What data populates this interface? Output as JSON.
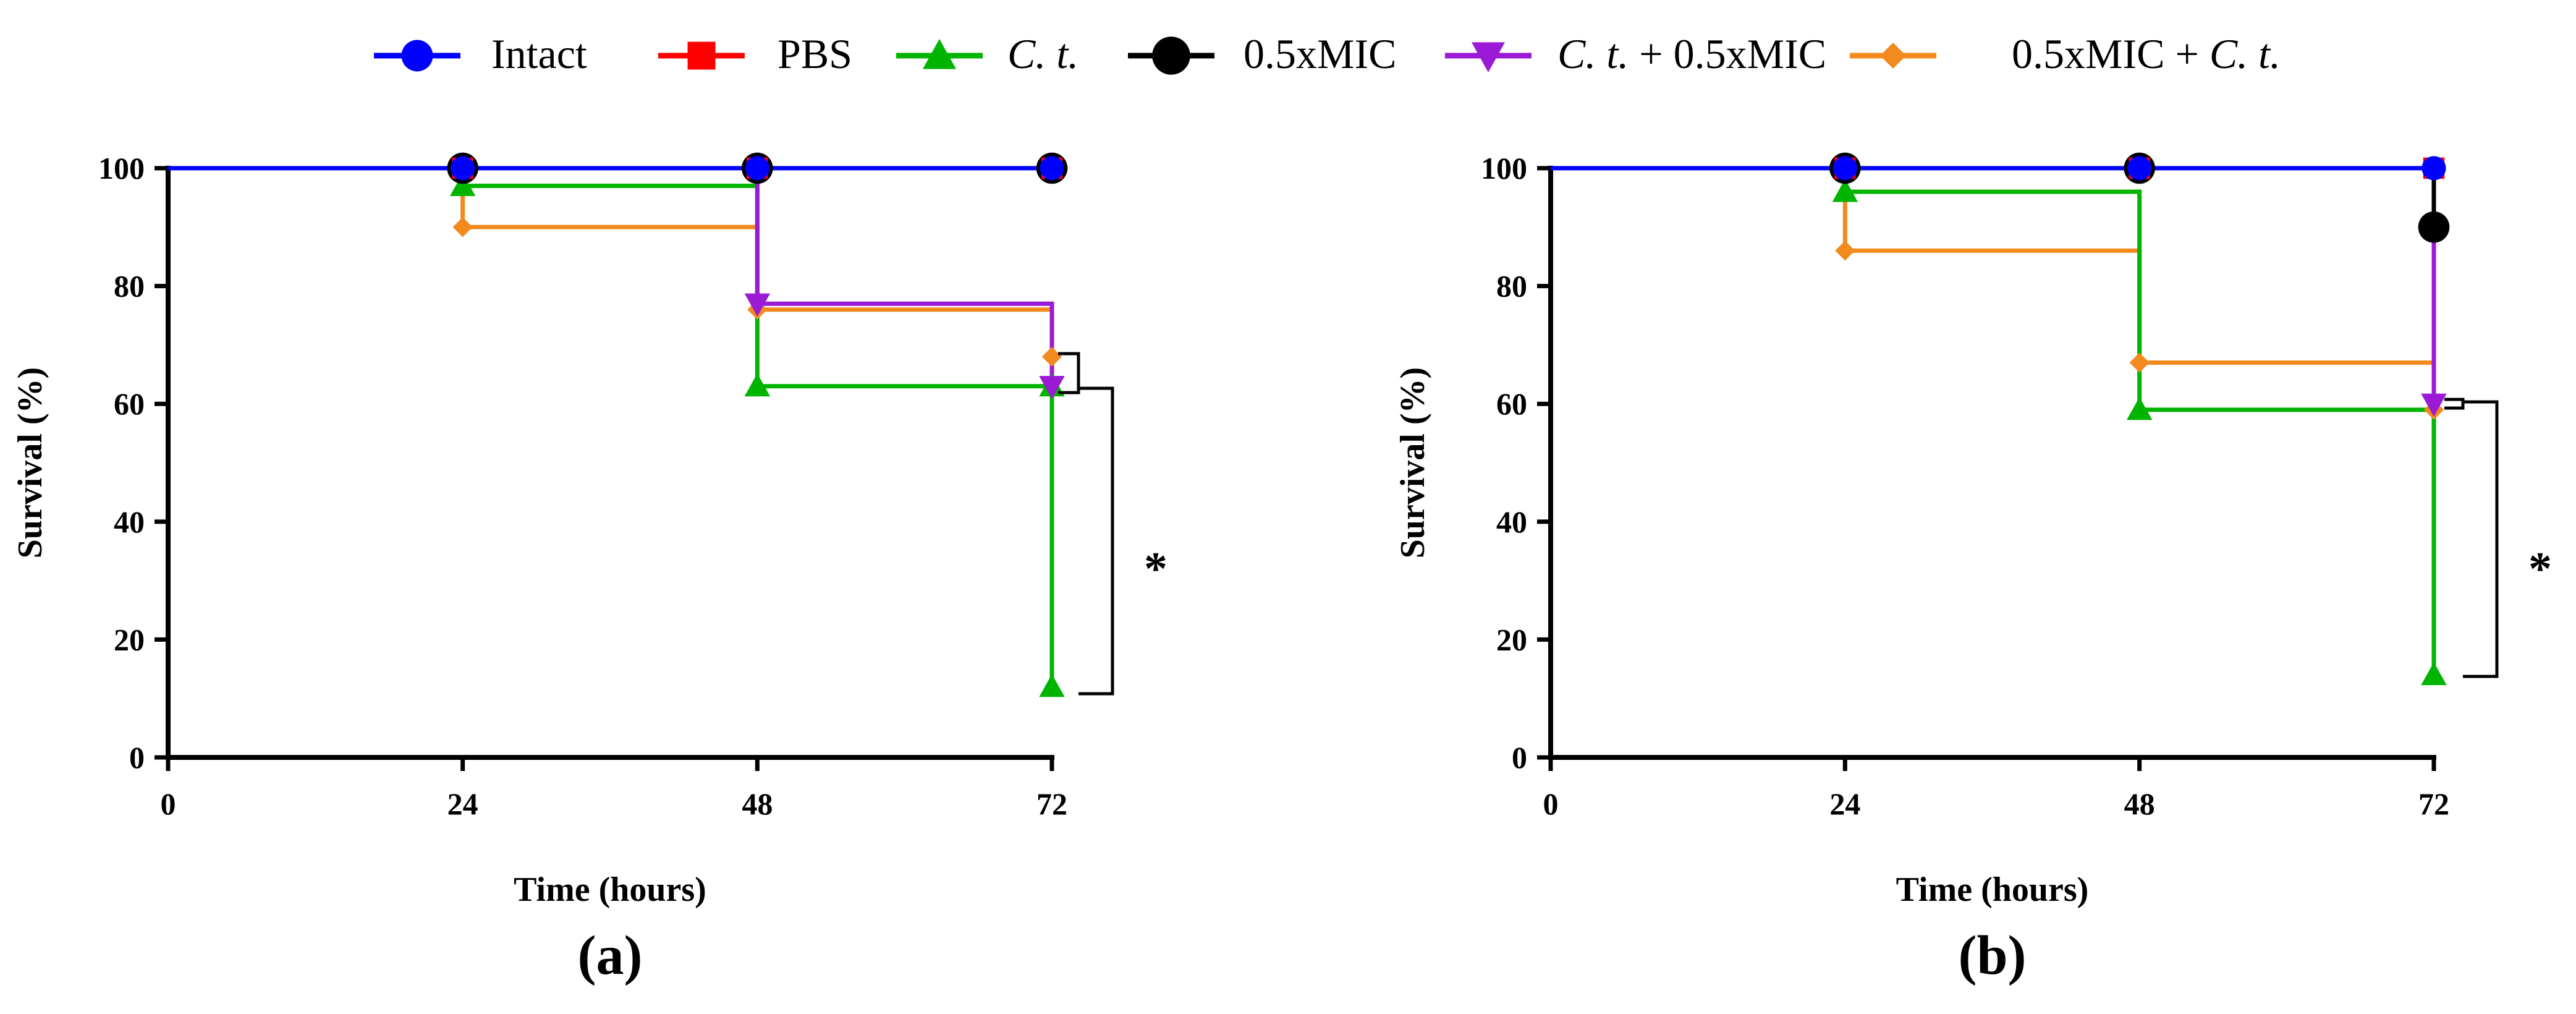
{
  "colors": {
    "Intact": "#0000ff",
    "PBS": "#ff0000",
    "C. t.": "#00b400",
    "0.5xMIC": "#000000",
    "C. t. + 0.5xMIC": "#9a1ad6",
    "0.5xMIC + C. t.": "#f28a1e"
  },
  "legend": [
    {
      "key": "Intact",
      "label_parts": [
        {
          "text": "Intact",
          "italic": false
        }
      ],
      "marker": "circle"
    },
    {
      "key": "PBS",
      "label_parts": [
        {
          "text": "PBS",
          "italic": false
        }
      ],
      "marker": "square"
    },
    {
      "key": "C. t.",
      "label_parts": [
        {
          "text": "C. t.",
          "italic": true
        }
      ],
      "marker": "triangle-up"
    },
    {
      "key": "0.5xMIC",
      "label_parts": [
        {
          "text": "0.5xMIC",
          "italic": false
        }
      ],
      "marker": "big-circle"
    },
    {
      "key": "C. t. + 0.5xMIC",
      "label_parts": [
        {
          "text": "C. t.",
          "italic": true
        },
        {
          "text": " + 0.5xMIC",
          "italic": false
        }
      ],
      "marker": "triangle-down"
    },
    {
      "key": "0.5xMIC + C. t.",
      "label_parts": [
        {
          "text": "0.5xMIC + ",
          "italic": false
        },
        {
          "text": "C. t.",
          "italic": true
        }
      ],
      "marker": "diamond"
    }
  ],
  "chart_data": [
    {
      "type": "line",
      "panel_label": "(a)",
      "xlabel": "Time (hours)",
      "ylabel": "Survival (%)",
      "xlim": [
        0,
        72
      ],
      "ylim": [
        0,
        100
      ],
      "xticks": [
        0,
        24,
        48,
        72
      ],
      "yticks": [
        0,
        20,
        40,
        60,
        80,
        100
      ],
      "significance": "*",
      "series": [
        {
          "name": "Intact",
          "steps": [
            [
              0,
              100
            ],
            [
              72,
              100
            ]
          ],
          "markers": [
            [
              24,
              100
            ],
            [
              48,
              100
            ],
            [
              72,
              100
            ]
          ]
        },
        {
          "name": "PBS",
          "steps": [
            [
              0,
              100
            ],
            [
              72,
              100
            ]
          ],
          "markers": [
            [
              24,
              100
            ],
            [
              48,
              100
            ],
            [
              72,
              100
            ]
          ]
        },
        {
          "name": "C. t.",
          "steps": [
            [
              0,
              100
            ],
            [
              24,
              100
            ],
            [
              24,
              97
            ],
            [
              48,
              97
            ],
            [
              48,
              63
            ],
            [
              72,
              63
            ],
            [
              72,
              12
            ]
          ],
          "markers": [
            [
              24,
              97
            ],
            [
              48,
              63
            ],
            [
              72,
              63
            ],
            [
              72,
              12
            ]
          ]
        },
        {
          "name": "0.5xMIC",
          "steps": [
            [
              0,
              100
            ],
            [
              72,
              100
            ]
          ],
          "markers": [
            [
              24,
              100
            ],
            [
              48,
              100
            ],
            [
              72,
              100
            ]
          ]
        },
        {
          "name": "C. t. + 0.5xMIC",
          "steps": [
            [
              0,
              100
            ],
            [
              48,
              100
            ],
            [
              48,
              77
            ],
            [
              72,
              77
            ],
            [
              72,
              63
            ]
          ],
          "markers": [
            [
              48,
              77
            ],
            [
              72,
              63
            ]
          ]
        },
        {
          "name": "0.5xMIC + C. t.",
          "steps": [
            [
              0,
              100
            ],
            [
              24,
              100
            ],
            [
              24,
              90
            ],
            [
              48,
              90
            ],
            [
              48,
              76
            ],
            [
              72,
              76
            ],
            [
              72,
              68
            ]
          ],
          "markers": [
            [
              24,
              90
            ],
            [
              48,
              76
            ],
            [
              72,
              68
            ]
          ]
        }
      ]
    },
    {
      "type": "line",
      "panel_label": "(b)",
      "xlabel": "Time (hours)",
      "ylabel": "Survival (%)",
      "xlim": [
        0,
        72
      ],
      "ylim": [
        0,
        100
      ],
      "xticks": [
        0,
        24,
        48,
        72
      ],
      "yticks": [
        0,
        20,
        40,
        60,
        80,
        100
      ],
      "significance": "*",
      "series": [
        {
          "name": "Intact",
          "steps": [
            [
              0,
              100
            ],
            [
              72,
              100
            ]
          ],
          "markers": [
            [
              24,
              100
            ],
            [
              48,
              100
            ],
            [
              72,
              100
            ]
          ]
        },
        {
          "name": "PBS",
          "steps": [
            [
              0,
              100
            ],
            [
              72,
              100
            ]
          ],
          "markers": [
            [
              24,
              100
            ],
            [
              48,
              100
            ],
            [
              72,
              100
            ]
          ]
        },
        {
          "name": "C. t.",
          "steps": [
            [
              0,
              100
            ],
            [
              24,
              100
            ],
            [
              24,
              96
            ],
            [
              48,
              96
            ],
            [
              48,
              59
            ],
            [
              72,
              59
            ],
            [
              72,
              14
            ]
          ],
          "markers": [
            [
              24,
              96
            ],
            [
              48,
              59
            ],
            [
              72,
              14
            ]
          ]
        },
        {
          "name": "0.5xMIC",
          "steps": [
            [
              0,
              100
            ],
            [
              72,
              100
            ],
            [
              72,
              90
            ]
          ],
          "markers": [
            [
              24,
              100
            ],
            [
              48,
              100
            ],
            [
              72,
              90
            ]
          ]
        },
        {
          "name": "C. t. + 0.5xMIC",
          "steps": [
            [
              0,
              100
            ],
            [
              72,
              100
            ],
            [
              72,
              60
            ]
          ],
          "markers": [
            [
              72,
              60
            ]
          ]
        },
        {
          "name": "0.5xMIC + C. t.",
          "steps": [
            [
              0,
              100
            ],
            [
              24,
              100
            ],
            [
              24,
              86
            ],
            [
              48,
              86
            ],
            [
              48,
              67
            ],
            [
              72,
              67
            ],
            [
              72,
              59
            ]
          ],
          "markers": [
            [
              24,
              86
            ],
            [
              48,
              67
            ],
            [
              72,
              59
            ]
          ]
        }
      ]
    }
  ]
}
